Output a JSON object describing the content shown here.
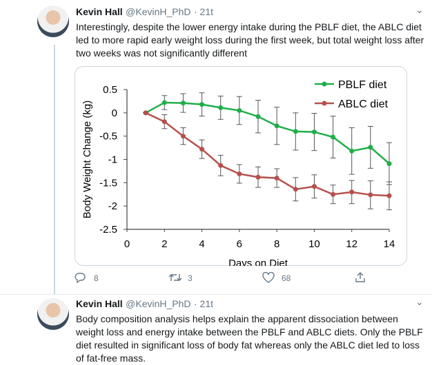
{
  "tweets": [
    {
      "name": "Kevin Hall",
      "handle": "@KevinH_PhD",
      "time": "· 21t",
      "text": "Interestingly, despite the lower energy intake during the PBLF diet, the ABLC diet led to more rapid early weight loss during the first week, but total weight loss after two weeks was not significantly different",
      "replies": 8,
      "retweets": 3,
      "likes": 68
    },
    {
      "name": "Kevin Hall",
      "handle": "@KevinH_PhD",
      "time": "· 21t",
      "text": "Body composition analysis helps explain the apparent dissociation between weight loss and energy intake between the PBLF and ABLC diets. Only the PBLF diet resulted in significant loss of body fat whereas only the ABLC diet led to loss of fat-free mass."
    }
  ],
  "chart_data": {
    "type": "line",
    "x_label": "Days on Diet",
    "y_label": "Body Weight Change (kg)",
    "x": [
      1,
      2,
      3,
      4,
      5,
      6,
      7,
      8,
      9,
      10,
      11,
      12,
      13,
      14
    ],
    "series": [
      {
        "name": "PBLF diet",
        "color": "#1fae48",
        "values": [
          0,
          0.22,
          0.21,
          0.18,
          0.11,
          0.05,
          -0.08,
          -0.28,
          -0.4,
          -0.41,
          -0.52,
          -0.82,
          -0.74,
          -1.09
        ],
        "errors": [
          0,
          0.15,
          0.2,
          0.25,
          0.25,
          0.3,
          0.35,
          0.4,
          0.4,
          0.4,
          0.45,
          0.5,
          0.45,
          0.45
        ]
      },
      {
        "name": "ABLC diet",
        "color": "#b5504c",
        "values": [
          0,
          -0.19,
          -0.5,
          -0.78,
          -1.13,
          -1.31,
          -1.38,
          -1.4,
          -1.64,
          -1.58,
          -1.75,
          -1.7,
          -1.76,
          -1.78
        ],
        "errors": [
          0,
          0.15,
          0.18,
          0.2,
          0.22,
          0.2,
          0.22,
          0.2,
          0.25,
          0.25,
          0.2,
          0.25,
          0.3,
          0.3
        ]
      }
    ],
    "xlim": [
      0,
      14
    ],
    "xticks": [
      0,
      2,
      4,
      6,
      8,
      10,
      12,
      14
    ],
    "ylim": [
      -2.5,
      0.5
    ],
    "yticks": [
      0.5,
      0,
      -0.5,
      -1,
      -1.5,
      -2,
      -2.5
    ],
    "legend": "upper right"
  }
}
